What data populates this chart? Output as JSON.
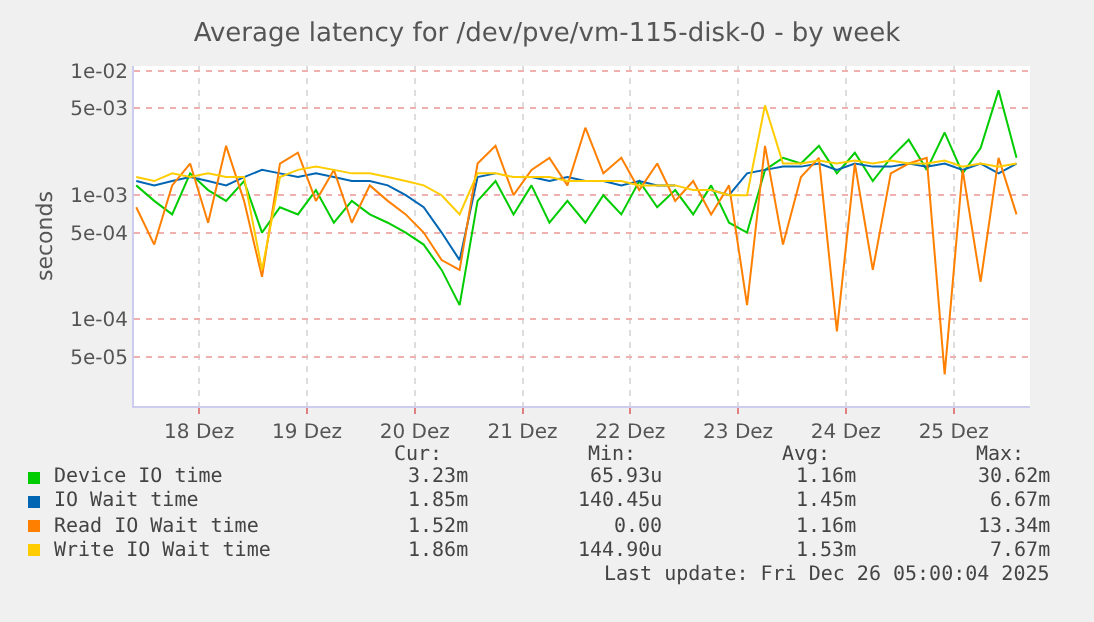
{
  "chart_data": {
    "type": "line",
    "title": "Average latency for /dev/pve/vm-115-disk-0 - by week",
    "ylabel": "seconds",
    "x": [
      "2025-12-17T22:00",
      "2025-12-18T02:00",
      "2025-12-18T06:00",
      "2025-12-18T10:00",
      "2025-12-18T14:00",
      "2025-12-18T18:00",
      "2025-12-18T22:00",
      "2025-12-19T02:00",
      "2025-12-19T06:00",
      "2025-12-19T10:00",
      "2025-12-19T14:00",
      "2025-12-19T18:00",
      "2025-12-19T22:00",
      "2025-12-20T02:00",
      "2025-12-20T06:00",
      "2025-12-20T10:00",
      "2025-12-20T14:00",
      "2025-12-20T18:00",
      "2025-12-20T22:00",
      "2025-12-21T02:00",
      "2025-12-21T06:00",
      "2025-12-21T10:00",
      "2025-12-21T14:00",
      "2025-12-21T18:00",
      "2025-12-21T22:00",
      "2025-12-22T02:00",
      "2025-12-22T06:00",
      "2025-12-22T10:00",
      "2025-12-22T14:00",
      "2025-12-22T18:00",
      "2025-12-22T22:00",
      "2025-12-23T02:00",
      "2025-12-23T06:00",
      "2025-12-23T10:00",
      "2025-12-23T14:00",
      "2025-12-23T18:00",
      "2025-12-23T22:00",
      "2025-12-24T02:00",
      "2025-12-24T06:00",
      "2025-12-24T10:00",
      "2025-12-24T14:00",
      "2025-12-24T18:00",
      "2025-12-24T22:00",
      "2025-12-25T02:00",
      "2025-12-25T06:00",
      "2025-12-25T10:00",
      "2025-12-25T14:00",
      "2025-12-25T18:00",
      "2025-12-25T22:00",
      "2025-12-26T02:00"
    ],
    "series": [
      {
        "name": "Device IO time",
        "color": "#00cc00",
        "values": [
          0.0012,
          0.0009,
          0.0007,
          0.0015,
          0.0011,
          0.0009,
          0.0013,
          0.0005,
          0.0008,
          0.0007,
          0.0011,
          0.0006,
          0.0009,
          0.0007,
          0.0006,
          0.0005,
          0.0004,
          0.00025,
          0.00013,
          0.0009,
          0.0013,
          0.0007,
          0.0012,
          0.0006,
          0.0009,
          0.0006,
          0.001,
          0.0007,
          0.0013,
          0.0008,
          0.0011,
          0.0007,
          0.0012,
          0.0006,
          0.0005,
          0.0016,
          0.002,
          0.0018,
          0.0025,
          0.0015,
          0.0022,
          0.0013,
          0.002,
          0.0028,
          0.0016,
          0.0032,
          0.0015,
          0.0024,
          0.007,
          0.002
        ]
      },
      {
        "name": "IO Wait time",
        "color": "#0066b3",
        "values": [
          0.0013,
          0.0012,
          0.0013,
          0.0014,
          0.0013,
          0.0012,
          0.0014,
          0.0016,
          0.0015,
          0.0014,
          0.0015,
          0.0014,
          0.0013,
          0.0013,
          0.0012,
          0.001,
          0.0008,
          0.0005,
          0.0003,
          0.0014,
          0.0015,
          null,
          0.0014,
          0.0013,
          0.0014,
          0.0013,
          0.0013,
          0.0012,
          0.0013,
          0.0012,
          0.0012,
          null,
          0.0011,
          0.001,
          0.0015,
          0.0016,
          0.0017,
          0.0017,
          0.0018,
          0.0016,
          0.0018,
          0.0017,
          0.0017,
          0.0018,
          0.0017,
          0.0018,
          0.0016,
          0.0018,
          0.0015,
          0.0018
        ]
      },
      {
        "name": "Read IO Wait time",
        "color": "#ff8000",
        "values": [
          0.0008,
          0.0004,
          0.0012,
          0.0018,
          0.0006,
          0.0025,
          0.0009,
          0.00022,
          0.0018,
          0.0022,
          0.0009,
          0.0016,
          0.0006,
          0.0012,
          0.0009,
          0.0007,
          0.0005,
          0.0003,
          0.00025,
          0.0018,
          0.0025,
          0.001,
          0.0016,
          0.002,
          0.0012,
          0.0035,
          0.0015,
          0.002,
          0.0011,
          0.0018,
          0.0009,
          0.0013,
          0.0007,
          0.0012,
          0.00013,
          0.0025,
          0.0004,
          0.0014,
          0.002,
          8e-05,
          0.0018,
          0.00025,
          0.0015,
          0.0018,
          0.002,
          3.6e-05,
          0.0016,
          0.0002,
          0.002,
          0.0007
        ]
      },
      {
        "name": "Write IO Wait time",
        "color": "#ffcc00",
        "values": [
          0.0014,
          0.0013,
          0.0015,
          0.0014,
          0.0015,
          0.0014,
          0.0014,
          0.00025,
          0.0014,
          0.0016,
          0.0017,
          0.0016,
          0.0015,
          0.0015,
          0.0014,
          0.0013,
          0.0012,
          0.001,
          0.0007,
          0.0015,
          0.0015,
          0.0014,
          0.0014,
          0.0014,
          0.0013,
          0.0013,
          0.0013,
          0.0013,
          0.0012,
          0.0012,
          0.0012,
          0.0011,
          0.0011,
          0.001,
          0.001,
          0.0053,
          0.0018,
          0.0018,
          0.0019,
          0.0018,
          0.0019,
          0.0018,
          0.0019,
          0.0018,
          0.0018,
          0.0019,
          0.0017,
          0.0018,
          0.0017,
          0.0018
        ]
      }
    ],
    "log": "y",
    "ylim": [
      2e-05,
      0.011
    ],
    "yticks": [
      {
        "value": 0.01,
        "label": "1e-02"
      },
      {
        "value": 0.005,
        "label": "5e-03"
      },
      {
        "value": 0.001,
        "label": "1e-03"
      },
      {
        "value": 0.0005,
        "label": "5e-04"
      },
      {
        "value": 0.0001,
        "label": "1e-04"
      },
      {
        "value": 5e-05,
        "label": "5e-05"
      }
    ],
    "xlim": [
      "2025-12-17T21:30",
      "2025-12-26T05:00"
    ],
    "xticks": [
      {
        "value": "2025-12-18T12:00",
        "label": "18 Dez"
      },
      {
        "value": "2025-12-19T12:00",
        "label": "19 Dez"
      },
      {
        "value": "2025-12-20T12:00",
        "label": "20 Dez"
      },
      {
        "value": "2025-12-21T12:00",
        "label": "21 Dez"
      },
      {
        "value": "2025-12-22T12:00",
        "label": "22 Dez"
      },
      {
        "value": "2025-12-23T12:00",
        "label": "23 Dez"
      },
      {
        "value": "2025-12-24T12:00",
        "label": "24 Dez"
      },
      {
        "value": "2025-12-25T12:00",
        "label": "25 Dez"
      }
    ],
    "grid": true,
    "legend": "bottom",
    "marker": "none",
    "line_style": "solid",
    "annotations": [
      "Cur:",
      "Min:",
      "Avg:",
      "Max:",
      "3.23m",
      "65.93u",
      "1.16m",
      "30.62m",
      "1.85m",
      "140.45u",
      "1.45m",
      "6.67m",
      "1.52m",
      "0.00",
      "1.16m",
      "13.34m",
      "1.86m",
      "144.90u",
      "1.53m",
      "7.67m",
      "Last update: Fri Dec 26 05:00:04 2025"
    ]
  }
}
